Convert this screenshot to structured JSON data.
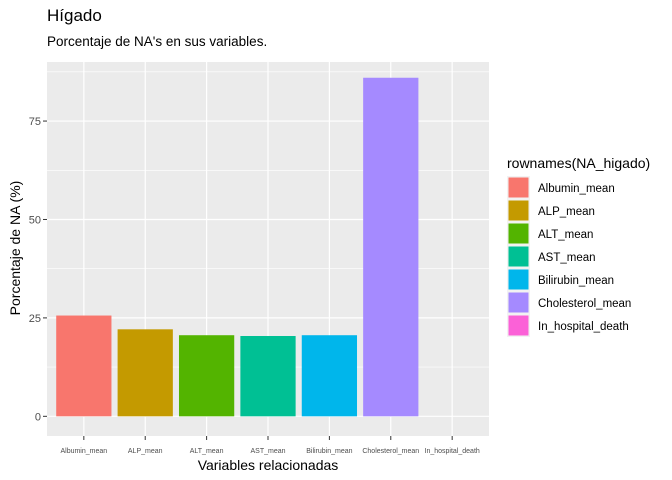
{
  "chart_data": {
    "type": "bar",
    "title": "Hígado",
    "subtitle": "Porcentaje de NA's en sus variables.",
    "xlabel": "Variables relacionadas",
    "ylabel": "Porcentaje de NA (%)",
    "categories": [
      "Albumin_mean",
      "ALP_mean",
      "ALT_mean",
      "AST_mean",
      "Bilirubin_mean",
      "Cholesterol_mean",
      "In_hospital_death"
    ],
    "values": [
      25.6,
      22.1,
      20.6,
      20.4,
      20.6,
      86.0,
      0
    ],
    "colors": [
      "#F8766D",
      "#C49A00",
      "#53B400",
      "#00C094",
      "#00B6EB",
      "#A58AFF",
      "#FB61D7"
    ],
    "ylim": [
      -5,
      90
    ],
    "yticks": [
      0,
      25,
      50,
      75
    ],
    "grid": true,
    "legend": {
      "title": "rownames(NA_higado)",
      "position": "right",
      "entries": [
        "Albumin_mean",
        "ALP_mean",
        "ALT_mean",
        "AST_mean",
        "Bilirubin_mean",
        "Cholesterol_mean",
        "In_hospital_death"
      ]
    },
    "panel_background": "#EBEBEB",
    "grid_color": "#FFFFFF"
  }
}
